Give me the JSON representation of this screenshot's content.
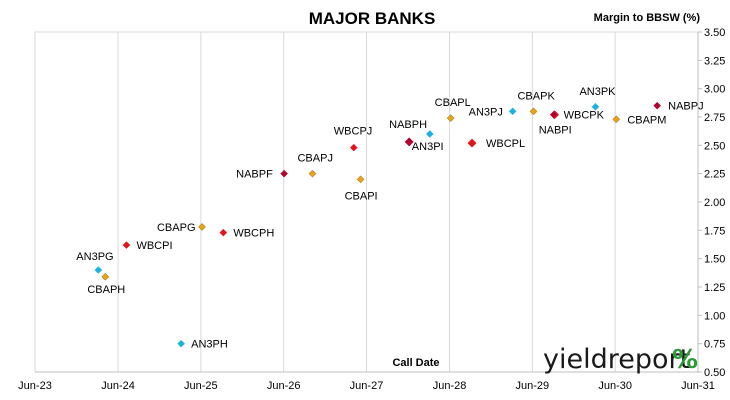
{
  "chart_data": {
    "type": "scatter",
    "title": "MAJOR BANKS",
    "ylabel": "Margin to BBSW (%)",
    "xlabel": "Call Date",
    "ylim": [
      0.5,
      3.5
    ],
    "ytick_step": 0.25,
    "xlim": [
      "2023-06",
      "2031-06"
    ],
    "xticks": [
      "Jun-23",
      "Jun-24",
      "Jun-25",
      "Jun-26",
      "Jun-27",
      "Jun-28",
      "Jun-29",
      "Jun-30",
      "Jun-31"
    ],
    "grid": "vertical",
    "series_colors": {
      "ANZ": "#1ab2e3",
      "CBA": "#e8a418",
      "NAB": "#b2002d",
      "WBC": "#e4141b"
    },
    "points": [
      {
        "label": "AN3PG",
        "issuer": "ANZ",
        "x": "2024-03-20",
        "y": 1.4
      },
      {
        "label": "CBAPH",
        "issuer": "CBA",
        "x": "2024-04-20",
        "y": 1.34
      },
      {
        "label": "WBCPI",
        "issuer": "WBC",
        "x": "2024-07-22",
        "y": 1.62
      },
      {
        "label": "CBAPG",
        "issuer": "CBA",
        "x": "2025-06-20",
        "y": 1.78
      },
      {
        "label": "AN3PH",
        "issuer": "ANZ",
        "x": "2025-03-20",
        "y": 0.75
      },
      {
        "label": "WBCPH",
        "issuer": "WBC",
        "x": "2025-09-22",
        "y": 1.73
      },
      {
        "label": "NABPF",
        "issuer": "NAB",
        "x": "2026-06-17",
        "y": 2.25
      },
      {
        "label": "CBAPJ",
        "issuer": "CBA",
        "x": "2026-10-20",
        "y": 2.25
      },
      {
        "label": "WBCPJ",
        "issuer": "WBC",
        "x": "2027-04-20",
        "y": 2.48
      },
      {
        "label": "CBAPI",
        "issuer": "CBA",
        "x": "2027-05-20",
        "y": 2.2
      },
      {
        "label": "NABPH",
        "issuer": "NAB",
        "x": "2027-12-20",
        "y": 2.53
      },
      {
        "label": "AN3PI",
        "issuer": "ANZ",
        "x": "2028-03-20",
        "y": 2.6
      },
      {
        "label": "CBAPL",
        "issuer": "CBA",
        "x": "2028-06-20",
        "y": 2.74
      },
      {
        "label": "WBCPL",
        "issuer": "WBC",
        "x": "2028-09-22",
        "y": 2.52
      },
      {
        "label": "AN3PJ",
        "issuer": "ANZ",
        "x": "2029-03-20",
        "y": 2.8
      },
      {
        "label": "CBAPK",
        "issuer": "CBA",
        "x": "2029-06-20",
        "y": 2.8
      },
      {
        "label": "WBCPK",
        "issuer": "WBC",
        "x": "2029-09-21",
        "y": 2.77
      },
      {
        "label": "NABPI",
        "issuer": "NAB",
        "x": "2029-09-17",
        "y": 2.77
      },
      {
        "label": "AN3PK",
        "issuer": "ANZ",
        "x": "2030-03-20",
        "y": 2.84
      },
      {
        "label": "CBAPM",
        "issuer": "CBA",
        "x": "2030-06-20",
        "y": 2.73
      },
      {
        "label": "NABPJ",
        "issuer": "NAB",
        "x": "2030-12-17",
        "y": 2.85
      }
    ]
  },
  "logo": {
    "text": "yieldreport",
    "symbol": "%"
  }
}
